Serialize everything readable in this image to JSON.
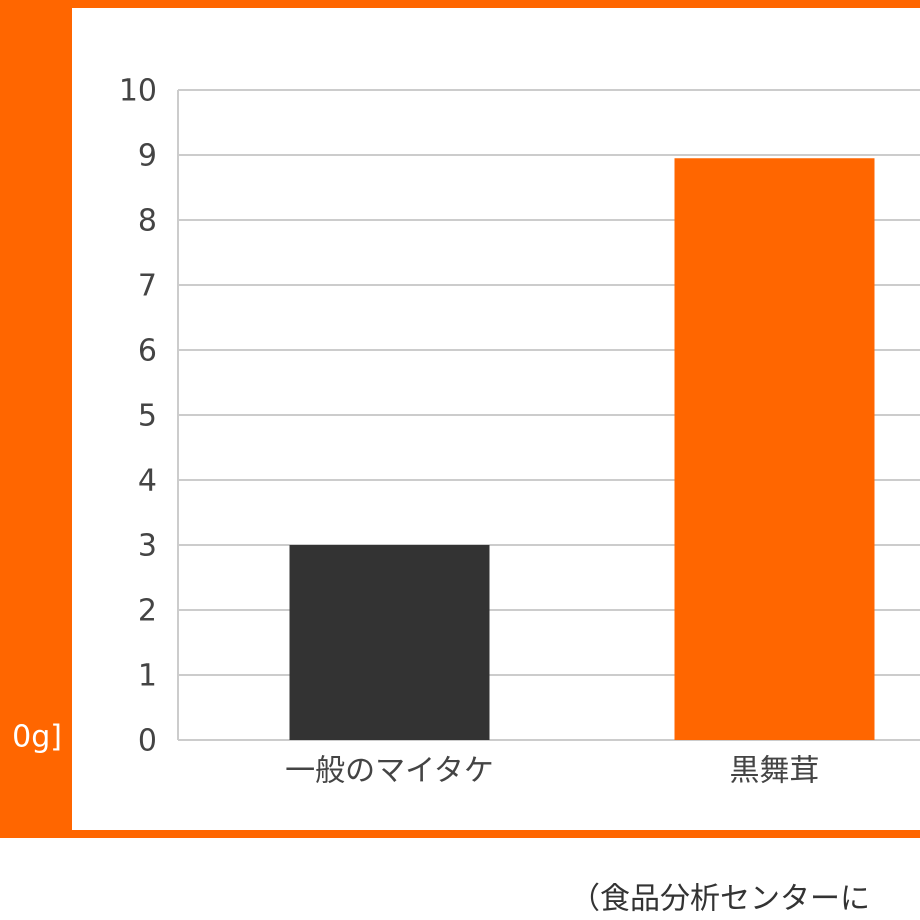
{
  "chart_data": {
    "type": "bar",
    "y_label": "0g]",
    "categories": [
      "一般のマイタケ",
      "黒舞茸"
    ],
    "values": [
      3,
      8.95
    ],
    "colors": [
      "#333333",
      "#ff6600"
    ],
    "ylim": [
      0,
      10
    ],
    "yticks": [
      0,
      1,
      2,
      3,
      4,
      5,
      6,
      7,
      8,
      9,
      10
    ],
    "grid": true,
    "note": "（食品分析センターに"
  }
}
